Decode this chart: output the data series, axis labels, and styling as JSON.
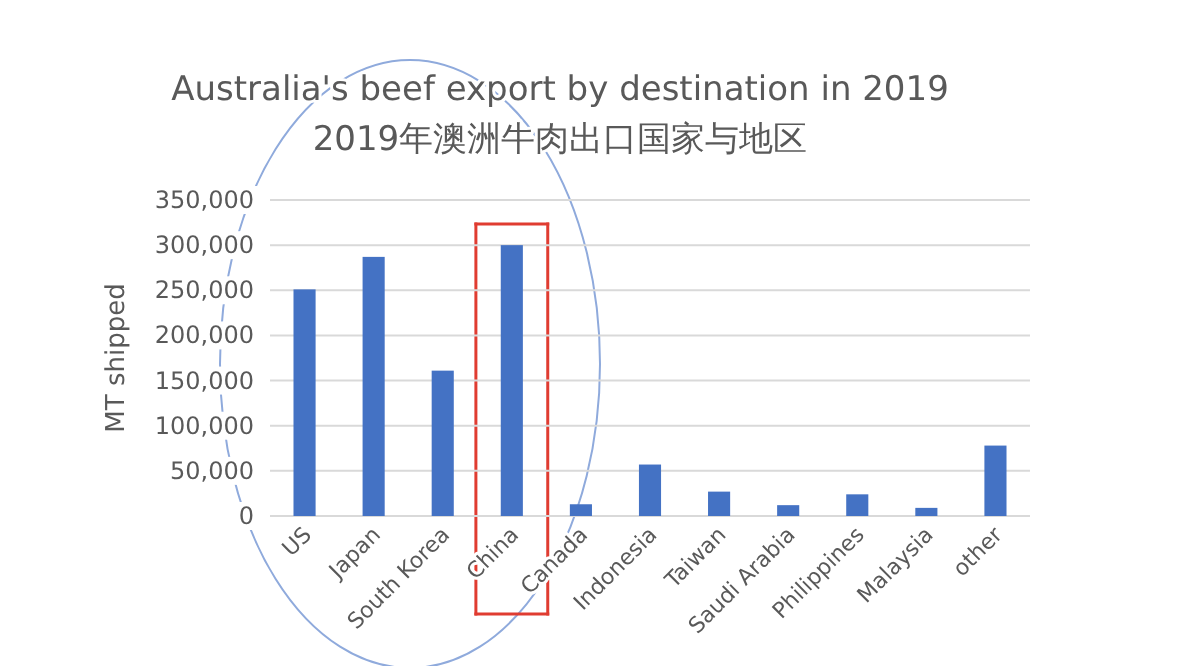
{
  "chart_data": {
    "type": "bar",
    "title": "Australia's beef export by destination in 2019",
    "subtitle": "2019年澳洲牛肉出口国家与地区",
    "ylabel": "MT shipped",
    "categories": [
      "US",
      "Japan",
      "South Korea",
      "China",
      "Canada",
      "Indonesia",
      "Taiwan",
      "Saudi Arabia",
      "Philippines",
      "Malaysia",
      "other"
    ],
    "values": [
      251000,
      287000,
      161000,
      300000,
      13000,
      57000,
      27000,
      12000,
      24000,
      9000,
      78000
    ],
    "color": "#4472c4",
    "ylim": [
      0,
      350000
    ],
    "yticks": [
      {
        "value": 0,
        "label": "0"
      },
      {
        "value": 50000,
        "label": "50,000"
      },
      {
        "value": 100000,
        "label": "100,000"
      },
      {
        "value": 150000,
        "label": "150,000"
      },
      {
        "value": 200000,
        "label": "200,000"
      },
      {
        "value": 250000,
        "label": "250,000"
      },
      {
        "value": 300000,
        "label": "300,000"
      },
      {
        "value": 350000,
        "label": "350,000"
      }
    ],
    "grid": "y"
  }
}
